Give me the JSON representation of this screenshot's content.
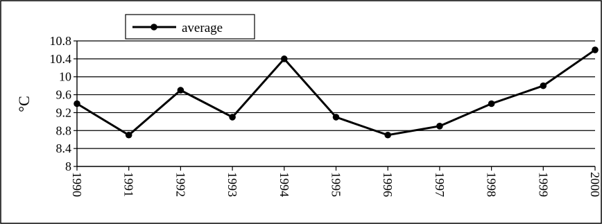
{
  "chart_data": {
    "type": "line",
    "title": "",
    "xlabel": "",
    "ylabel": "°C",
    "x": [
      "1990",
      "1991",
      "1992",
      "1993",
      "1994",
      "1995",
      "1996",
      "1997",
      "1998",
      "1999",
      "2000"
    ],
    "series": [
      {
        "name": "average",
        "values": [
          9.4,
          8.7,
          9.7,
          9.1,
          10.4,
          9.1,
          8.7,
          8.9,
          9.4,
          9.8,
          10.6
        ],
        "color": "#000000"
      }
    ],
    "ylim": [
      8,
      10.8
    ],
    "yticks": [
      "8",
      "8.4",
      "8.8",
      "9.2",
      "9.6",
      "10",
      "10.4",
      "10.8"
    ],
    "grid": true,
    "legend_position": "top-left"
  }
}
